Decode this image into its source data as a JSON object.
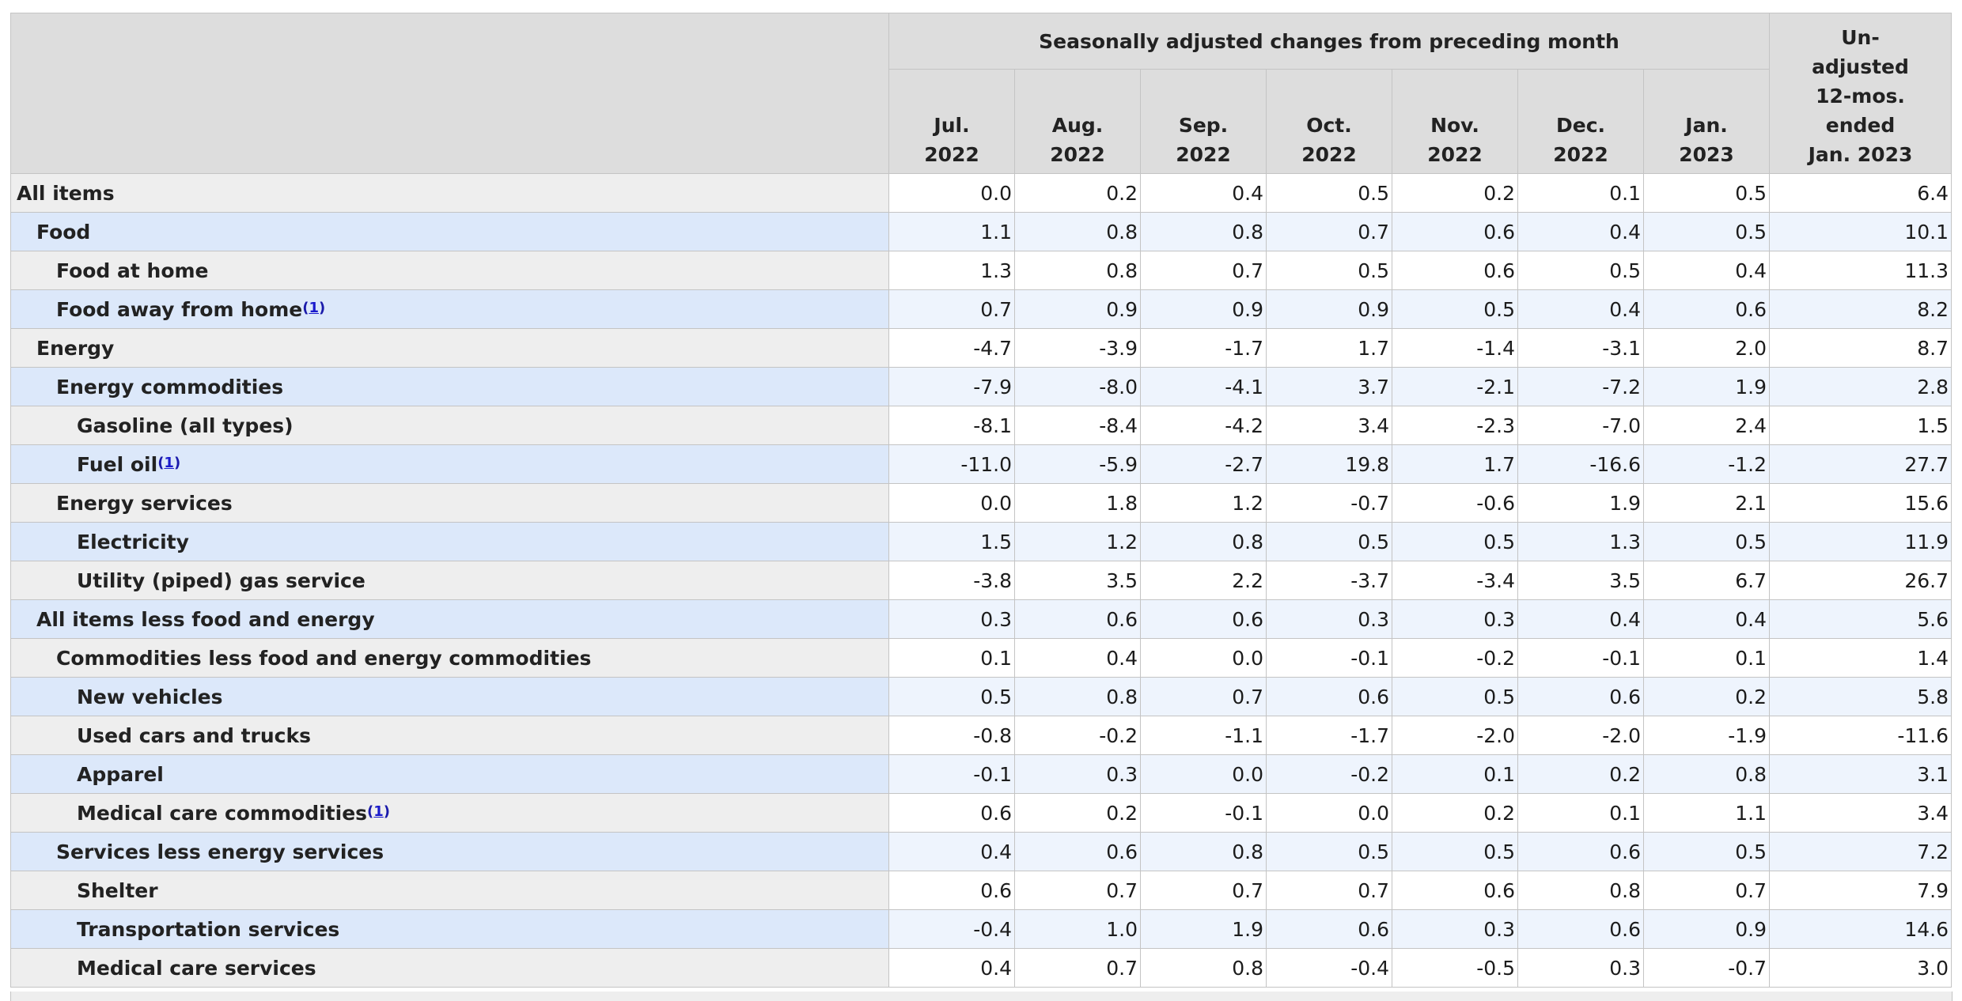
{
  "header": {
    "group_title": "Seasonally adjusted changes from preceding month",
    "months": [
      {
        "line1": "Jul.",
        "line2": "2022"
      },
      {
        "line1": "Aug.",
        "line2": "2022"
      },
      {
        "line1": "Sep.",
        "line2": "2022"
      },
      {
        "line1": "Oct.",
        "line2": "2022"
      },
      {
        "line1": "Nov.",
        "line2": "2022"
      },
      {
        "line1": "Dec.",
        "line2": "2022"
      },
      {
        "line1": "Jan.",
        "line2": "2023"
      }
    ],
    "unadjusted": [
      "Un-",
      "adjusted",
      "12-mos.",
      "ended",
      "Jan. 2023"
    ]
  },
  "rows": [
    {
      "label": "All items",
      "level": 0,
      "footnote": "",
      "values": [
        "0.0",
        "0.2",
        "0.4",
        "0.5",
        "0.2",
        "0.1",
        "0.5",
        "6.4"
      ]
    },
    {
      "label": "Food",
      "level": 1,
      "footnote": "",
      "values": [
        "1.1",
        "0.8",
        "0.8",
        "0.7",
        "0.6",
        "0.4",
        "0.5",
        "10.1"
      ]
    },
    {
      "label": "Food at home",
      "level": 2,
      "footnote": "",
      "values": [
        "1.3",
        "0.8",
        "0.7",
        "0.5",
        "0.6",
        "0.5",
        "0.4",
        "11.3"
      ]
    },
    {
      "label": "Food away from home",
      "level": 2,
      "footnote": "1",
      "values": [
        "0.7",
        "0.9",
        "0.9",
        "0.9",
        "0.5",
        "0.4",
        "0.6",
        "8.2"
      ]
    },
    {
      "label": "Energy",
      "level": 1,
      "footnote": "",
      "values": [
        "-4.7",
        "-3.9",
        "-1.7",
        "1.7",
        "-1.4",
        "-3.1",
        "2.0",
        "8.7"
      ]
    },
    {
      "label": "Energy commodities",
      "level": 2,
      "footnote": "",
      "values": [
        "-7.9",
        "-8.0",
        "-4.1",
        "3.7",
        "-2.1",
        "-7.2",
        "1.9",
        "2.8"
      ]
    },
    {
      "label": "Gasoline (all types)",
      "level": 3,
      "footnote": "",
      "values": [
        "-8.1",
        "-8.4",
        "-4.2",
        "3.4",
        "-2.3",
        "-7.0",
        "2.4",
        "1.5"
      ]
    },
    {
      "label": "Fuel oil",
      "level": 3,
      "footnote": "1",
      "values": [
        "-11.0",
        "-5.9",
        "-2.7",
        "19.8",
        "1.7",
        "-16.6",
        "-1.2",
        "27.7"
      ]
    },
    {
      "label": "Energy services",
      "level": 2,
      "footnote": "",
      "values": [
        "0.0",
        "1.8",
        "1.2",
        "-0.7",
        "-0.6",
        "1.9",
        "2.1",
        "15.6"
      ]
    },
    {
      "label": "Electricity",
      "level": 3,
      "footnote": "",
      "values": [
        "1.5",
        "1.2",
        "0.8",
        "0.5",
        "0.5",
        "1.3",
        "0.5",
        "11.9"
      ]
    },
    {
      "label": "Utility (piped) gas service",
      "level": 3,
      "footnote": "",
      "values": [
        "-3.8",
        "3.5",
        "2.2",
        "-3.7",
        "-3.4",
        "3.5",
        "6.7",
        "26.7"
      ]
    },
    {
      "label": "All items less food and energy",
      "level": 1,
      "footnote": "",
      "values": [
        "0.3",
        "0.6",
        "0.6",
        "0.3",
        "0.3",
        "0.4",
        "0.4",
        "5.6"
      ]
    },
    {
      "label": "Commodities less food and energy commodities",
      "level": 2,
      "footnote": "",
      "values": [
        "0.1",
        "0.4",
        "0.0",
        "-0.1",
        "-0.2",
        "-0.1",
        "0.1",
        "1.4"
      ]
    },
    {
      "label": "New vehicles",
      "level": 3,
      "footnote": "",
      "values": [
        "0.5",
        "0.8",
        "0.7",
        "0.6",
        "0.5",
        "0.6",
        "0.2",
        "5.8"
      ]
    },
    {
      "label": "Used cars and trucks",
      "level": 3,
      "footnote": "",
      "values": [
        "-0.8",
        "-0.2",
        "-1.1",
        "-1.7",
        "-2.0",
        "-2.0",
        "-1.9",
        "-11.6"
      ]
    },
    {
      "label": "Apparel",
      "level": 3,
      "footnote": "",
      "values": [
        "-0.1",
        "0.3",
        "0.0",
        "-0.2",
        "0.1",
        "0.2",
        "0.8",
        "3.1"
      ]
    },
    {
      "label": "Medical care commodities",
      "level": 3,
      "footnote": "1",
      "values": [
        "0.6",
        "0.2",
        "-0.1",
        "0.0",
        "0.2",
        "0.1",
        "1.1",
        "3.4"
      ]
    },
    {
      "label": "Services less energy services",
      "level": 2,
      "footnote": "",
      "values": [
        "0.4",
        "0.6",
        "0.8",
        "0.5",
        "0.5",
        "0.6",
        "0.5",
        "7.2"
      ]
    },
    {
      "label": "Shelter",
      "level": 3,
      "footnote": "",
      "values": [
        "0.6",
        "0.7",
        "0.7",
        "0.7",
        "0.6",
        "0.8",
        "0.7",
        "7.9"
      ]
    },
    {
      "label": "Transportation services",
      "level": 3,
      "footnote": "",
      "values": [
        "-0.4",
        "1.0",
        "1.9",
        "0.6",
        "0.3",
        "0.6",
        "0.9",
        "14.6"
      ]
    },
    {
      "label": "Medical care services",
      "level": 3,
      "footnote": "",
      "values": [
        "0.4",
        "0.7",
        "0.8",
        "-0.4",
        "-0.5",
        "0.3",
        "-0.7",
        "3.0"
      ]
    }
  ]
}
